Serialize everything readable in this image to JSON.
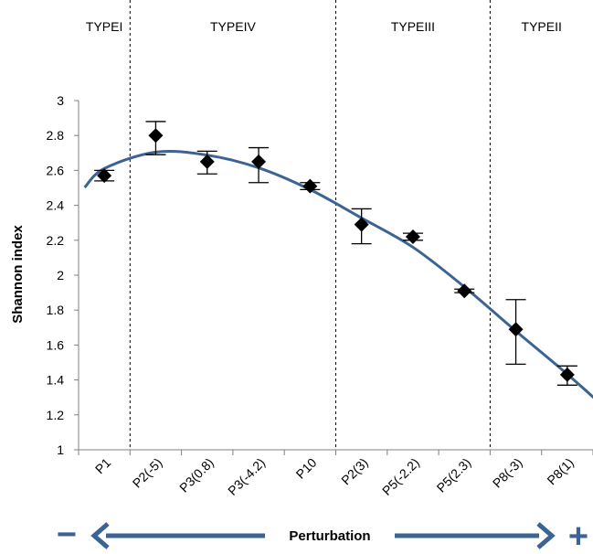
{
  "chart_data": {
    "type": "scatter",
    "categories": [
      "P1",
      "P2(-5)",
      "P3(0.8)",
      "P3(-4.2)",
      "P10",
      "P2(3)",
      "P5(-2.2)",
      "P5(2.3)",
      "P8(-3)",
      "P8(1)"
    ],
    "values": [
      2.57,
      2.8,
      2.65,
      2.65,
      2.51,
      2.29,
      2.22,
      1.91,
      1.69,
      1.43
    ],
    "error_upper": [
      2.6,
      2.88,
      2.71,
      2.73,
      2.53,
      2.38,
      2.24,
      1.92,
      1.86,
      1.48
    ],
    "error_lower": [
      2.54,
      2.69,
      2.58,
      2.53,
      2.49,
      2.18,
      2.2,
      1.9,
      1.49,
      1.37
    ],
    "trend_line": true,
    "ylabel": "Shannon index",
    "ylim": [
      1,
      3
    ],
    "yticks": [
      "1",
      "1.2",
      "1.4",
      "1.6",
      "1.8",
      "2",
      "2.2",
      "2.4",
      "2.6",
      "2.8",
      "3"
    ],
    "xlabel": "Perturbation",
    "x_arrow_minus": "−",
    "x_arrow_plus": "+",
    "grid": false,
    "regions": [
      {
        "label": "TYPEI",
        "start": 0,
        "end": 1
      },
      {
        "label": "TYPEIV",
        "start": 1,
        "end": 5
      },
      {
        "label": "TYPEIII",
        "start": 5,
        "end": 8
      },
      {
        "label": "TYPEII",
        "start": 8,
        "end": 10
      }
    ],
    "colors": {
      "line": "#3b6494",
      "marker": "#000000",
      "axis": "#808080",
      "arrow": "#3b6494"
    }
  }
}
